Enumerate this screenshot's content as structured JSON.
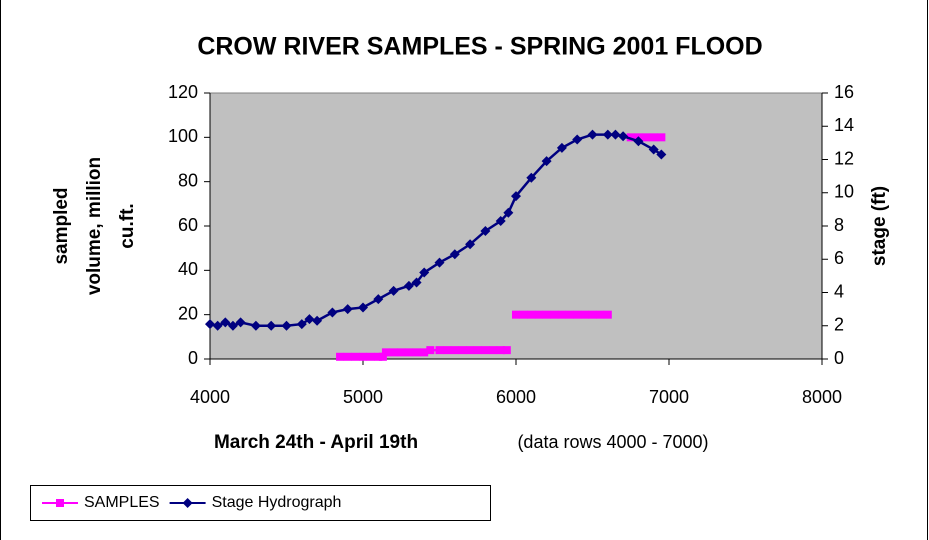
{
  "chart_data": {
    "type": "line",
    "title": "CROW RIVER SAMPLES - SPRING 2001 FLOOD",
    "x_label_bold": "March 24th - April 19th",
    "x_label": "(data rows 4000 - 7000)",
    "y_label": [
      "sampled",
      "volume, million",
      "cu.ft."
    ],
    "y2_label": "stage (ft)",
    "xlim": [
      4000,
      8000
    ],
    "xticks": [
      4000,
      5000,
      6000,
      7000,
      8000
    ],
    "ylim": [
      0,
      120
    ],
    "yticks": [
      0,
      20,
      40,
      60,
      80,
      100,
      120
    ],
    "y2lim": [
      0,
      16
    ],
    "y2ticks": [
      0,
      2,
      4,
      6,
      8,
      10,
      12,
      14,
      16
    ],
    "plot_background": "#c0c0c0",
    "legend": "bottom-left",
    "series": [
      {
        "name": "SAMPLES",
        "color": "#ff00ff",
        "marker": "square",
        "x": [
          4850,
          4900,
          4950,
          5000,
          5050,
          5100,
          5130,
          5140,
          5150,
          5200,
          5250,
          5300,
          5350,
          5400,
          5420,
          5440,
          5500,
          5550,
          5600,
          5650,
          5700,
          5750,
          5800,
          5850,
          5900,
          5940,
          5970,
          6000,
          6050,
          6100,
          6150,
          6200,
          6250,
          6300,
          6350,
          6400,
          6450,
          6500,
          6550,
          6600,
          6680,
          6750,
          6800,
          6850,
          6900,
          6950
        ],
        "values": [
          1,
          1,
          1,
          1,
          1,
          1,
          1,
          null,
          3,
          3,
          3,
          3,
          3,
          3,
          null,
          4,
          4,
          4,
          4,
          4,
          4,
          4,
          4,
          4,
          4,
          4,
          null,
          20,
          20,
          20,
          20,
          20,
          20,
          20,
          20,
          20,
          20,
          20,
          20,
          20,
          null,
          100,
          100,
          100,
          100,
          100
        ]
      },
      {
        "name": "Stage Hydrograph",
        "color": "#000080",
        "marker": "diamond",
        "axis": "y2",
        "x": [
          4000,
          4050,
          4100,
          4150,
          4200,
          4300,
          4400,
          4500,
          4600,
          4650,
          4700,
          4800,
          4900,
          5000,
          5100,
          5200,
          5300,
          5350,
          5400,
          5500,
          5600,
          5700,
          5800,
          5900,
          5950,
          6000,
          6100,
          6200,
          6300,
          6400,
          6500,
          6600,
          6650,
          6700,
          6800,
          6900,
          6950
        ],
        "values": [
          2.1,
          2.0,
          2.2,
          2.0,
          2.2,
          2.0,
          2.0,
          2.0,
          2.1,
          2.4,
          2.3,
          2.8,
          3.0,
          3.1,
          3.6,
          4.1,
          4.4,
          4.6,
          5.2,
          5.8,
          6.3,
          6.9,
          7.7,
          8.3,
          8.8,
          9.8,
          10.9,
          11.9,
          12.7,
          13.2,
          13.5,
          13.5,
          13.5,
          13.4,
          13.1,
          12.6,
          12.3
        ]
      }
    ]
  }
}
